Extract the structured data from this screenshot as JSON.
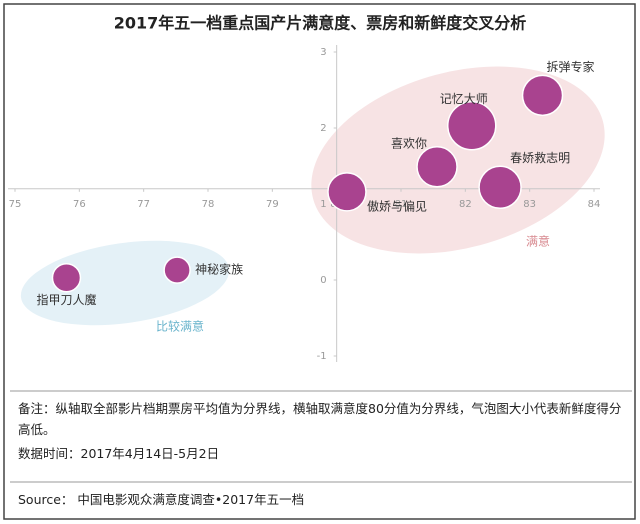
{
  "chart_data": {
    "type": "bubble",
    "title": "2017年五一档重点国产片满意度、票房和新鲜度交叉分析",
    "series": [
      {
        "color": "#a9438f",
        "labels": [
          "拆弹专家",
          "记忆大师",
          "喜欢你",
          "春娇救志明",
          "傲娇与偏见",
          "神秘家族",
          "指甲刀人魔"
        ],
        "x": [
          83.2,
          82.1,
          81.56,
          82.54,
          80.16,
          77.52,
          75.8
        ],
        "values": [
          2.43,
          2.03,
          1.49,
          1.22,
          1.16,
          0.13,
          0.03
        ],
        "sizes": [
          20,
          24,
          20,
          21,
          19,
          13,
          14
        ]
      }
    ],
    "xlim": [
      75,
      84
    ],
    "xticks": [
      75,
      76,
      77,
      78,
      79,
      80,
      81,
      82,
      83,
      84
    ],
    "ylim": [
      -1,
      3
    ],
    "yticks": [
      -1,
      0,
      1,
      2,
      3
    ],
    "x_axis_at": 1.2,
    "y_axis_at": 80,
    "annotations": [
      "满意",
      "比较满意"
    ],
    "note": "备注：纵轴取全部影片档期票房平均值为分界线，横轴取满意度80分值为分界线，气泡图大小代表新鲜度得分高低。",
    "date": "数据时间：2017年4月14日-5月2日",
    "source": "Source： 中国电影观众满意度调查•2017年五一档"
  }
}
